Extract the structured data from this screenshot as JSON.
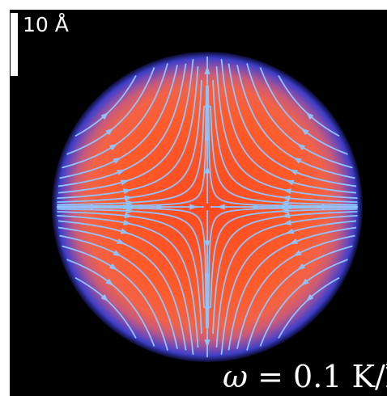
{
  "scale_bar": {
    "label": "10 Å"
  },
  "rotation_label": {
    "symbol": "ω",
    "equals": "=",
    "value": "0.1",
    "unit": "K/ħ"
  },
  "colors": {
    "background": "#000000",
    "core": "#ff5a2a",
    "rim_purple": "#6f45a8",
    "rim_blue": "#3a40c8",
    "streamlines": "#8fc3ff"
  }
}
